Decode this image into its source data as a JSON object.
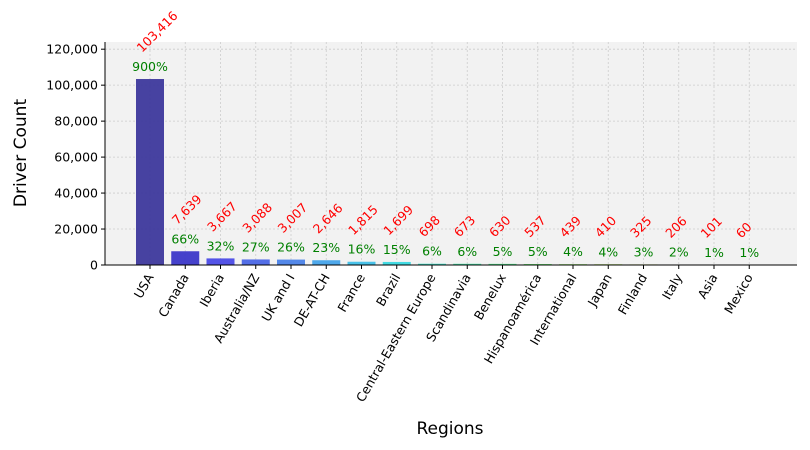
{
  "chart_data": {
    "type": "bar",
    "title": "",
    "xlabel": "Regions",
    "ylabel": "Driver Count",
    "ylim": [
      0,
      124000
    ],
    "yticks": [
      0,
      20000,
      40000,
      60000,
      80000,
      100000,
      120000
    ],
    "ytick_labels": [
      "0",
      "20,000",
      "40,000",
      "60,000",
      "80,000",
      "100,000",
      "120,000"
    ],
    "grid": true,
    "categories": [
      "USA",
      "Canada",
      "Iberia",
      "Australia/NZ",
      "UK and I",
      "DE-AT-CH",
      "France",
      "Brazil",
      "Central-Eastern Europe",
      "Scandinavia",
      "Benelux",
      "Hispanoamérica",
      "International",
      "Japan",
      "Finland",
      "Italy",
      "Asia",
      "Mexico"
    ],
    "values": [
      103416,
      7639,
      3667,
      3088,
      3007,
      2646,
      1815,
      1699,
      698,
      673,
      630,
      537,
      439,
      410,
      325,
      206,
      101,
      60
    ],
    "value_labels": [
      "103,416",
      "7,639",
      "3,667",
      "3,088",
      "3,007",
      "2,646",
      "1,815",
      "1,699",
      "698",
      "673",
      "630",
      "537",
      "439",
      "410",
      "325",
      "206",
      "101",
      "60"
    ],
    "percent_labels": [
      "900%",
      "66%",
      "32%",
      "27%",
      "26%",
      "23%",
      "16%",
      "15%",
      "6%",
      "6%",
      "5%",
      "5%",
      "4%",
      "4%",
      "3%",
      "2%",
      "1%",
      "1%"
    ],
    "bar_colors": [
      "#3d389c",
      "#3b37c8",
      "#4a4ae6",
      "#4a66e6",
      "#4a82e8",
      "#45a3ea",
      "#3fbfe8",
      "#38d8e0",
      "#35e3c8",
      "#3ee8a8",
      "#4ceb8a",
      "#64ec6a",
      "#86ec52",
      "#a8e845",
      "#c8dd3e",
      "#e0c838",
      "#e8a836",
      "#e87c34"
    ],
    "value_label_color": "#ff0000",
    "percent_label_color": "#008000",
    "background_color": "#f2f2f2"
  }
}
